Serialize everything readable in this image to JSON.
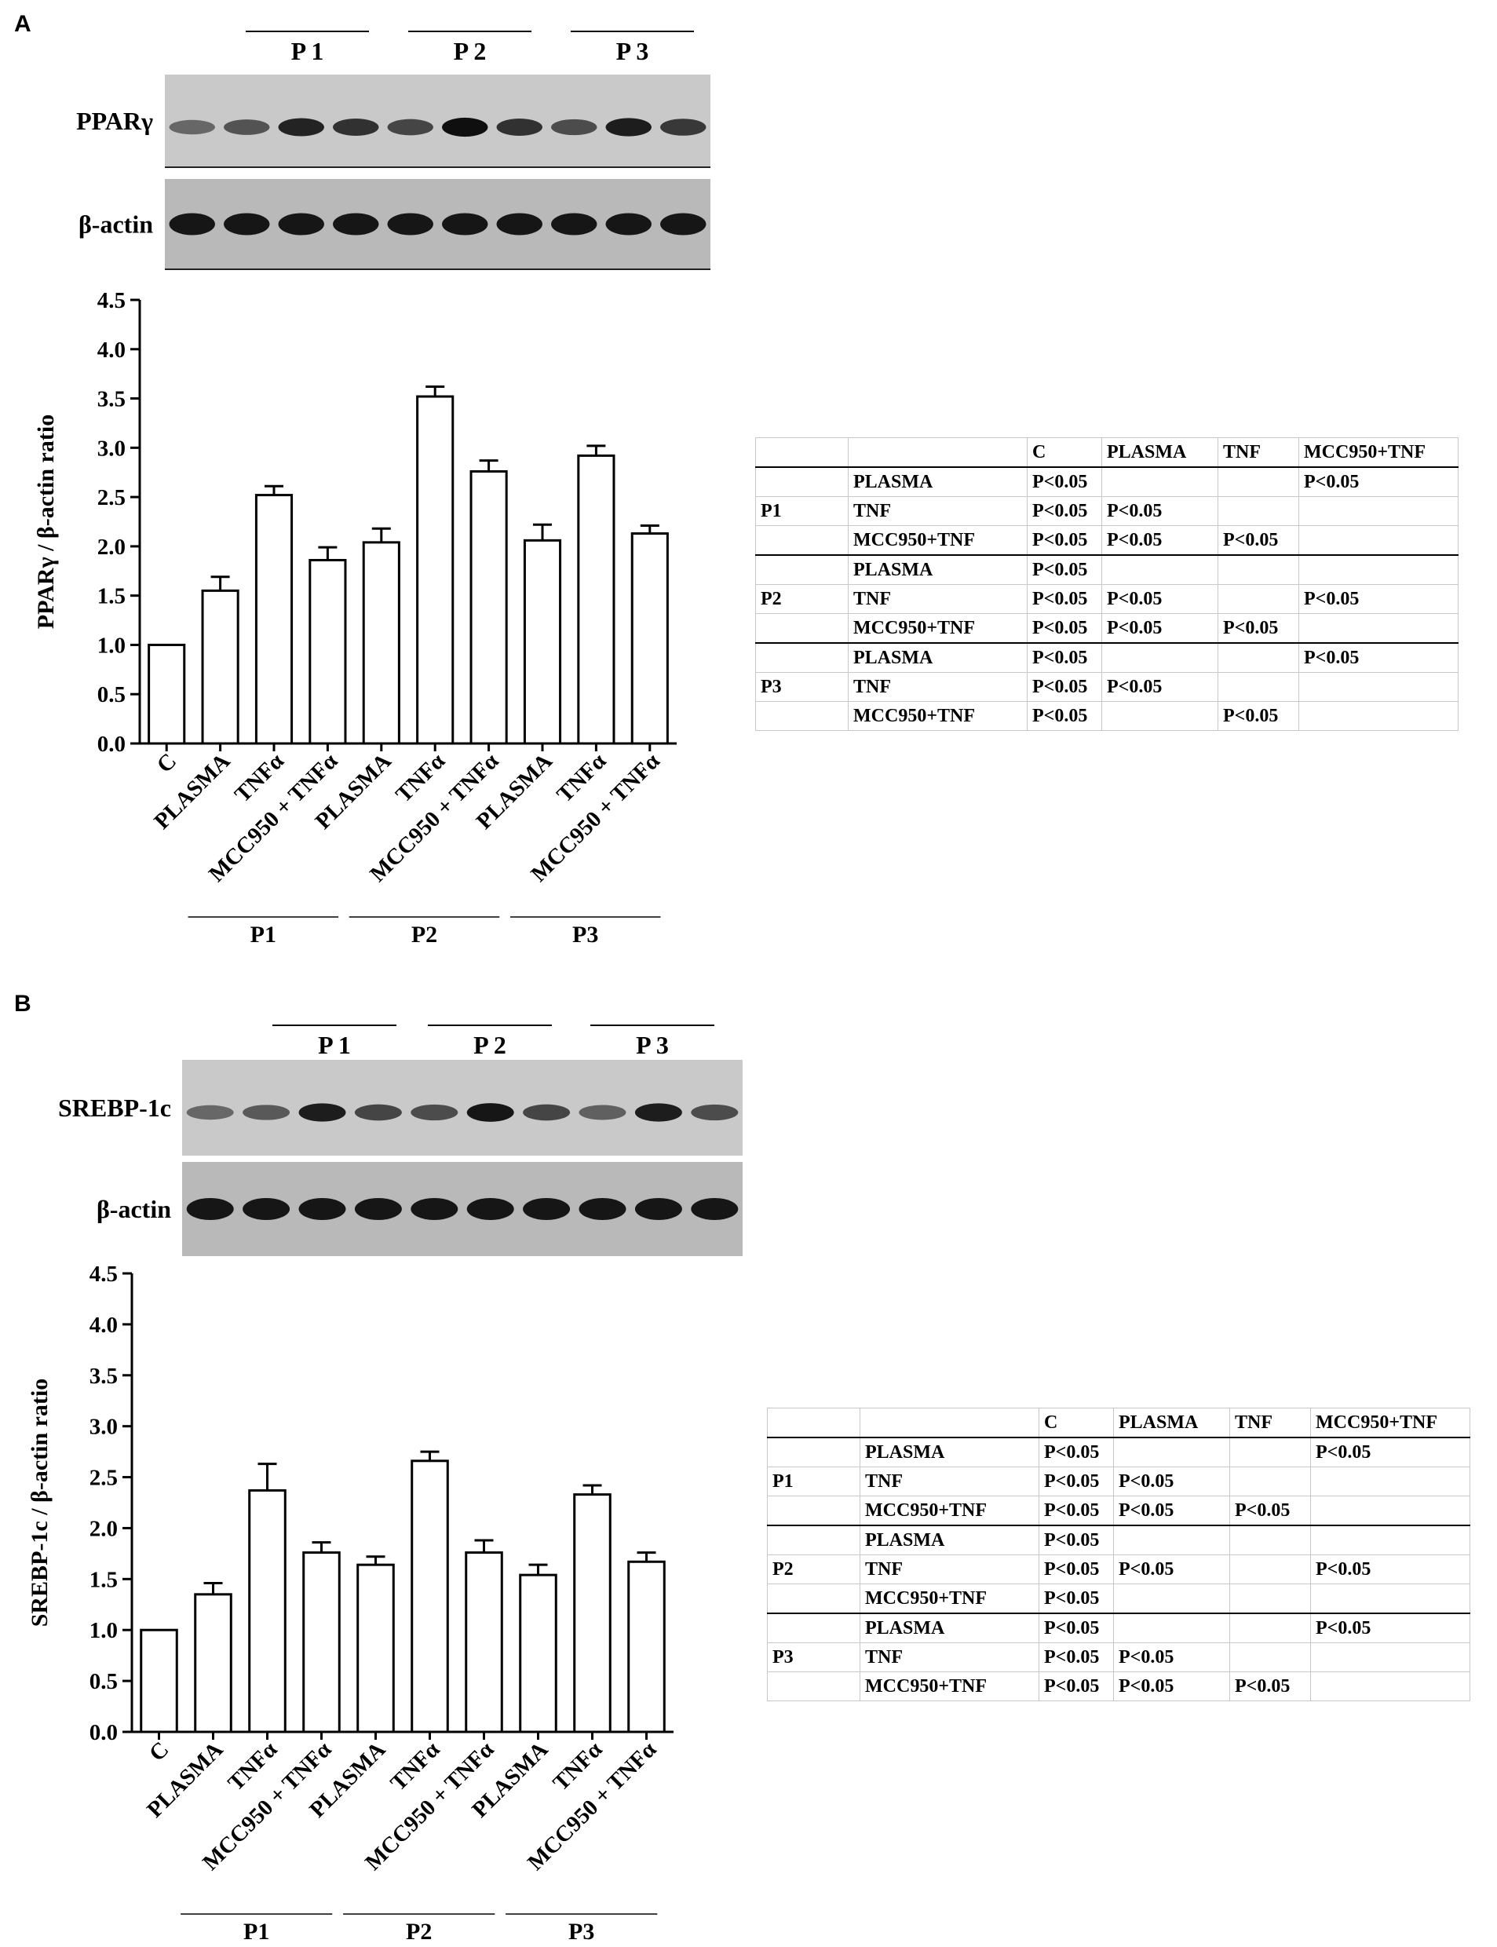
{
  "panels": [
    {
      "letter": "A",
      "blot_groups": [
        "P 1",
        "P 2",
        "P 3"
      ],
      "blot_labels": {
        "target": "PPARγ",
        "loading": "β-actin"
      },
      "chart_data": {
        "type": "bar",
        "ylabel": "PPARγ / β-actin ratio",
        "ylim": [
          0,
          4.5
        ],
        "yticks": [
          "0.0",
          "0.5",
          "1.0",
          "1.5",
          "2.0",
          "2.5",
          "3.0",
          "3.5",
          "4.0",
          "4.5"
        ],
        "categories": [
          "C",
          "PLASMA",
          "TNFα",
          "MCC950 + TNFα",
          "PLASMA",
          "TNFα",
          "MCC950 + TNFα",
          "PLASMA",
          "TNFα",
          "MCC950 + TNFα"
        ],
        "values": [
          1.0,
          1.55,
          2.52,
          1.86,
          2.04,
          3.52,
          2.76,
          2.06,
          2.92,
          2.13
        ],
        "errors": [
          0.0,
          0.14,
          0.09,
          0.13,
          0.14,
          0.1,
          0.11,
          0.16,
          0.1,
          0.08
        ],
        "groups": [
          "P1",
          "P2",
          "P3"
        ]
      },
      "table": {
        "header": [
          "",
          "",
          "C",
          "PLASMA",
          "TNF",
          "MCC950+TNF"
        ],
        "groups": [
          {
            "name": "P1",
            "rows": [
              [
                "PLASMA",
                "P<0.05",
                "",
                "",
                "P<0.05"
              ],
              [
                "TNF",
                "P<0.05",
                "P<0.05",
                "",
                ""
              ],
              [
                "MCC950+TNF",
                "P<0.05",
                "P<0.05",
                "P<0.05",
                ""
              ]
            ]
          },
          {
            "name": "P2",
            "rows": [
              [
                "PLASMA",
                "P<0.05",
                "",
                "",
                ""
              ],
              [
                "TNF",
                "P<0.05",
                "P<0.05",
                "",
                "P<0.05"
              ],
              [
                "MCC950+TNF",
                "P<0.05",
                "P<0.05",
                "P<0.05",
                ""
              ]
            ]
          },
          {
            "name": "P3",
            "rows": [
              [
                "PLASMA",
                "P<0.05",
                "",
                "",
                "P<0.05"
              ],
              [
                "TNF",
                "P<0.05",
                "P<0.05",
                "",
                ""
              ],
              [
                "MCC950+TNF",
                "P<0.05",
                "",
                "P<0.05",
                ""
              ]
            ]
          }
        ]
      }
    },
    {
      "letter": "B",
      "blot_groups": [
        "P 1",
        "P 2",
        "P 3"
      ],
      "blot_labels": {
        "target": "SREBP-1c",
        "loading": "β-actin"
      },
      "chart_data": {
        "type": "bar",
        "ylabel": "SREBP-1c / β-actin ratio",
        "ylim": [
          0,
          4.5
        ],
        "yticks": [
          "0.0",
          "0.5",
          "1.0",
          "1.5",
          "2.0",
          "2.5",
          "3.0",
          "3.5",
          "4.0",
          "4.5"
        ],
        "categories": [
          "C",
          "PLASMA",
          "TNFα",
          "MCC950 + TNFα",
          "PLASMA",
          "TNFα",
          "MCC950 + TNFα",
          "PLASMA",
          "TNFα",
          "MCC950 + TNFα"
        ],
        "values": [
          1.0,
          1.35,
          2.37,
          1.76,
          1.64,
          2.66,
          1.76,
          1.54,
          2.33,
          1.67
        ],
        "errors": [
          0.0,
          0.11,
          0.26,
          0.1,
          0.08,
          0.09,
          0.12,
          0.1,
          0.09,
          0.09
        ],
        "groups": [
          "P1",
          "P2",
          "P3"
        ]
      },
      "table": {
        "header": [
          "",
          "",
          "C",
          "PLASMA",
          "TNF",
          "MCC950+TNF"
        ],
        "groups": [
          {
            "name": "P1",
            "rows": [
              [
                "PLASMA",
                "P<0.05",
                "",
                "",
                "P<0.05"
              ],
              [
                "TNF",
                "P<0.05",
                "P<0.05",
                "",
                ""
              ],
              [
                "MCC950+TNF",
                "P<0.05",
                "P<0.05",
                "P<0.05",
                ""
              ]
            ]
          },
          {
            "name": "P2",
            "rows": [
              [
                "PLASMA",
                "P<0.05",
                "",
                "",
                ""
              ],
              [
                "TNF",
                "P<0.05",
                "P<0.05",
                "",
                "P<0.05"
              ],
              [
                "MCC950+TNF",
                "P<0.05",
                "",
                "",
                ""
              ]
            ]
          },
          {
            "name": "P3",
            "rows": [
              [
                "PLASMA",
                "P<0.05",
                "",
                "",
                "P<0.05"
              ],
              [
                "TNF",
                "P<0.05",
                "P<0.05",
                "",
                ""
              ],
              [
                "MCC950+TNF",
                "P<0.05",
                "P<0.05",
                "P<0.05",
                ""
              ]
            ]
          }
        ]
      },
      "band_intensity": {
        "target": [
          0.35,
          0.45,
          0.9,
          0.6,
          0.55,
          0.95,
          0.6,
          0.4,
          0.9,
          0.55
        ],
        "loading": [
          0.95,
          0.95,
          0.95,
          0.95,
          0.95,
          0.95,
          0.95,
          0.95,
          0.95,
          0.95
        ]
      }
    }
  ],
  "band_intensity_A": {
    "target": [
      0.35,
      0.5,
      0.85,
      0.75,
      0.6,
      1.0,
      0.75,
      0.55,
      0.9,
      0.7
    ],
    "loading": [
      0.95,
      0.95,
      0.95,
      0.95,
      0.95,
      0.95,
      0.95,
      0.95,
      0.95,
      0.95
    ]
  }
}
